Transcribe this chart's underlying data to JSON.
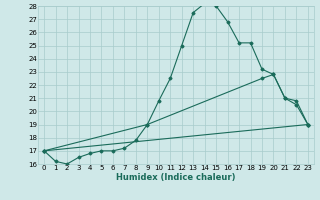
{
  "xlabel": "Humidex (Indice chaleur)",
  "bg_color": "#cfe8e8",
  "grid_color": "#a8cccc",
  "line_color": "#1a6b5a",
  "xlim": [
    -0.5,
    23.5
  ],
  "ylim": [
    16,
    28
  ],
  "xticks": [
    0,
    1,
    2,
    3,
    4,
    5,
    6,
    7,
    8,
    9,
    10,
    11,
    12,
    13,
    14,
    15,
    16,
    17,
    18,
    19,
    20,
    21,
    22,
    23
  ],
  "yticks": [
    16,
    17,
    18,
    19,
    20,
    21,
    22,
    23,
    24,
    25,
    26,
    27,
    28
  ],
  "line1_x": [
    0,
    1,
    2,
    3,
    4,
    5,
    6,
    7,
    8,
    9,
    10,
    11,
    12,
    13,
    14,
    15,
    16,
    17,
    18,
    19,
    20,
    21,
    22,
    23
  ],
  "line1_y": [
    17.0,
    16.2,
    16.0,
    16.5,
    16.8,
    17.0,
    17.0,
    17.2,
    17.8,
    19.0,
    20.8,
    22.5,
    25.0,
    27.5,
    28.2,
    28.0,
    26.8,
    25.2,
    25.2,
    23.2,
    22.8,
    21.0,
    20.8,
    19.0
  ],
  "line2_x": [
    0,
    9,
    19,
    20,
    21,
    22,
    23
  ],
  "line2_y": [
    17.0,
    19.0,
    22.5,
    22.8,
    21.0,
    20.5,
    19.0
  ],
  "line3_x": [
    0,
    23
  ],
  "line3_y": [
    17.0,
    19.0
  ]
}
